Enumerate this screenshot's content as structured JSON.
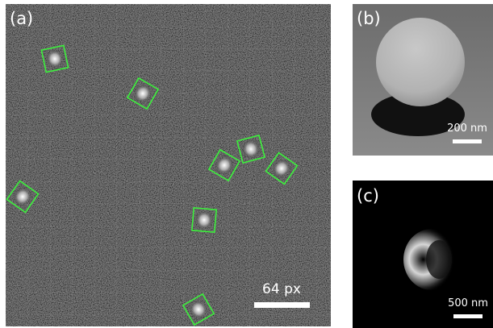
{
  "panels": [
    {
      "label": "(a)",
      "scale_bar": "64 px"
    },
    {
      "label": "(b)",
      "scale_bar": "200 nm"
    },
    {
      "label": "(c)",
      "scale_bar": "500 nm"
    }
  ]
}
